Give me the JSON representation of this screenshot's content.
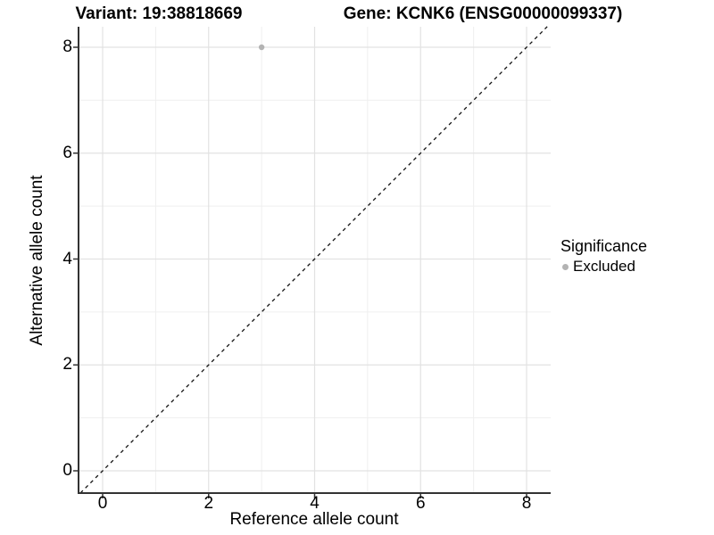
{
  "colors": {
    "background": "#ffffff",
    "grid_major": "#e2e2e2",
    "grid_minor": "#efefef",
    "axis_line": "#333333",
    "tick_mark": "#333333",
    "reference_line": "#111111",
    "point_fill": "#b3b3b3",
    "text": "#000000"
  },
  "chart_data": {
    "type": "scatter",
    "title_left": "Variant: 19:38818669",
    "title_right": "Gene: KCNK6 (ENSG00000099337)",
    "xlabel": "Reference allele count",
    "ylabel": "Alternative allele count",
    "xlim": [
      -0.45,
      8.45
    ],
    "ylim": [
      -0.42,
      8.39
    ],
    "x_ticks": [
      0,
      2,
      4,
      6,
      8
    ],
    "y_ticks": [
      0,
      2,
      4,
      6,
      8
    ],
    "x_minor_gridlines": [
      1,
      3,
      5,
      7
    ],
    "y_minor_gridlines": [
      1,
      3,
      5,
      7
    ],
    "grid": "on",
    "points": [
      {
        "x": 3,
        "y": 8,
        "series": "Excluded"
      }
    ],
    "reference_line": {
      "type": "identity y = x",
      "style": "dashed",
      "from": [
        -0.42,
        -0.42
      ],
      "to": [
        8.39,
        8.39
      ]
    },
    "legend": {
      "title": "Significance",
      "position": "right",
      "entries": [
        {
          "label": "Excluded",
          "color": "#b3b3b3",
          "marker": "circle"
        }
      ]
    }
  }
}
